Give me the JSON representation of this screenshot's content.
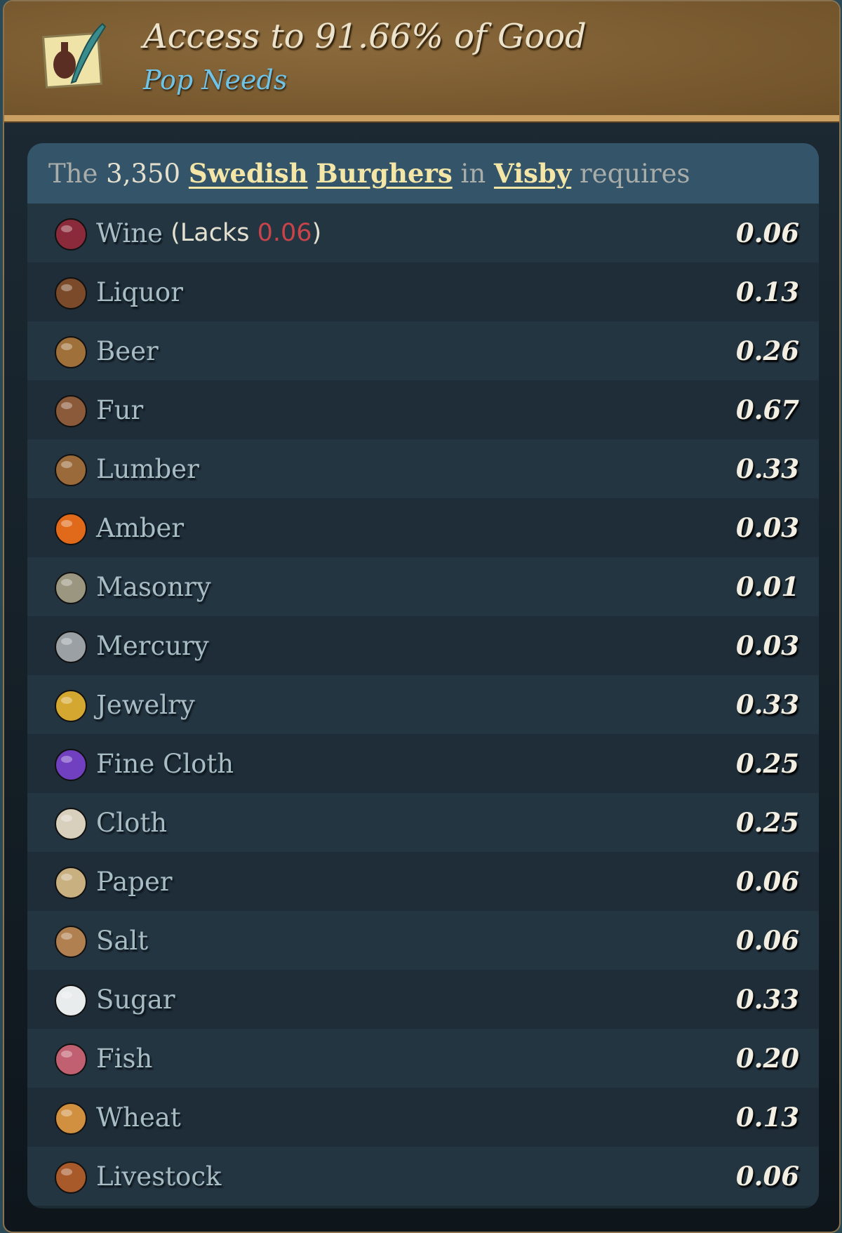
{
  "header": {
    "title": "Access to 91.66% of Good",
    "subtitle": "Pop Needs",
    "icon": "pop-needs-quill-icon"
  },
  "requirement": {
    "prefix": "The ",
    "count": "3,350",
    "culture": "Swedish",
    "pop_type": "Burghers",
    "in": " in ",
    "location": "Visby",
    "suffix": " requires"
  },
  "goods": [
    {
      "name": "Wine",
      "value": "0.06",
      "lacks_label": "(Lacks ",
      "lacks_value": "0.06",
      "lacks_close": ")",
      "icon": "wine-icon",
      "color": "#8a2a3a"
    },
    {
      "name": "Liquor",
      "value": "0.13",
      "icon": "liquor-icon",
      "color": "#7a4a2a"
    },
    {
      "name": "Beer",
      "value": "0.26",
      "icon": "beer-icon",
      "color": "#a0703a"
    },
    {
      "name": "Fur",
      "value": "0.67",
      "icon": "fur-icon",
      "color": "#8a5a3a"
    },
    {
      "name": "Lumber",
      "value": "0.33",
      "icon": "lumber-icon",
      "color": "#9a6a3a"
    },
    {
      "name": "Amber",
      "value": "0.03",
      "icon": "amber-icon",
      "color": "#e06a1a"
    },
    {
      "name": "Masonry",
      "value": "0.01",
      "icon": "masonry-icon",
      "color": "#9a9680"
    },
    {
      "name": "Mercury",
      "value": "0.03",
      "icon": "mercury-icon",
      "color": "#9aa0a4"
    },
    {
      "name": "Jewelry",
      "value": "0.33",
      "icon": "jewelry-icon",
      "color": "#d4a830"
    },
    {
      "name": "Fine Cloth",
      "value": "0.25",
      "icon": "fine-cloth-icon",
      "color": "#7040c0"
    },
    {
      "name": "Cloth",
      "value": "0.25",
      "icon": "cloth-icon",
      "color": "#d8d0bc"
    },
    {
      "name": "Paper",
      "value": "0.06",
      "icon": "paper-icon",
      "color": "#c8b080"
    },
    {
      "name": "Salt",
      "value": "0.06",
      "icon": "salt-icon",
      "color": "#b08050"
    },
    {
      "name": "Sugar",
      "value": "0.33",
      "icon": "sugar-icon",
      "color": "#e8ecec"
    },
    {
      "name": "Fish",
      "value": "0.20",
      "icon": "fish-icon",
      "color": "#c06070"
    },
    {
      "name": "Wheat",
      "value": "0.13",
      "icon": "wheat-icon",
      "color": "#d09040"
    },
    {
      "name": "Livestock",
      "value": "0.06",
      "icon": "livestock-icon",
      "color": "#a85a2a"
    }
  ]
}
